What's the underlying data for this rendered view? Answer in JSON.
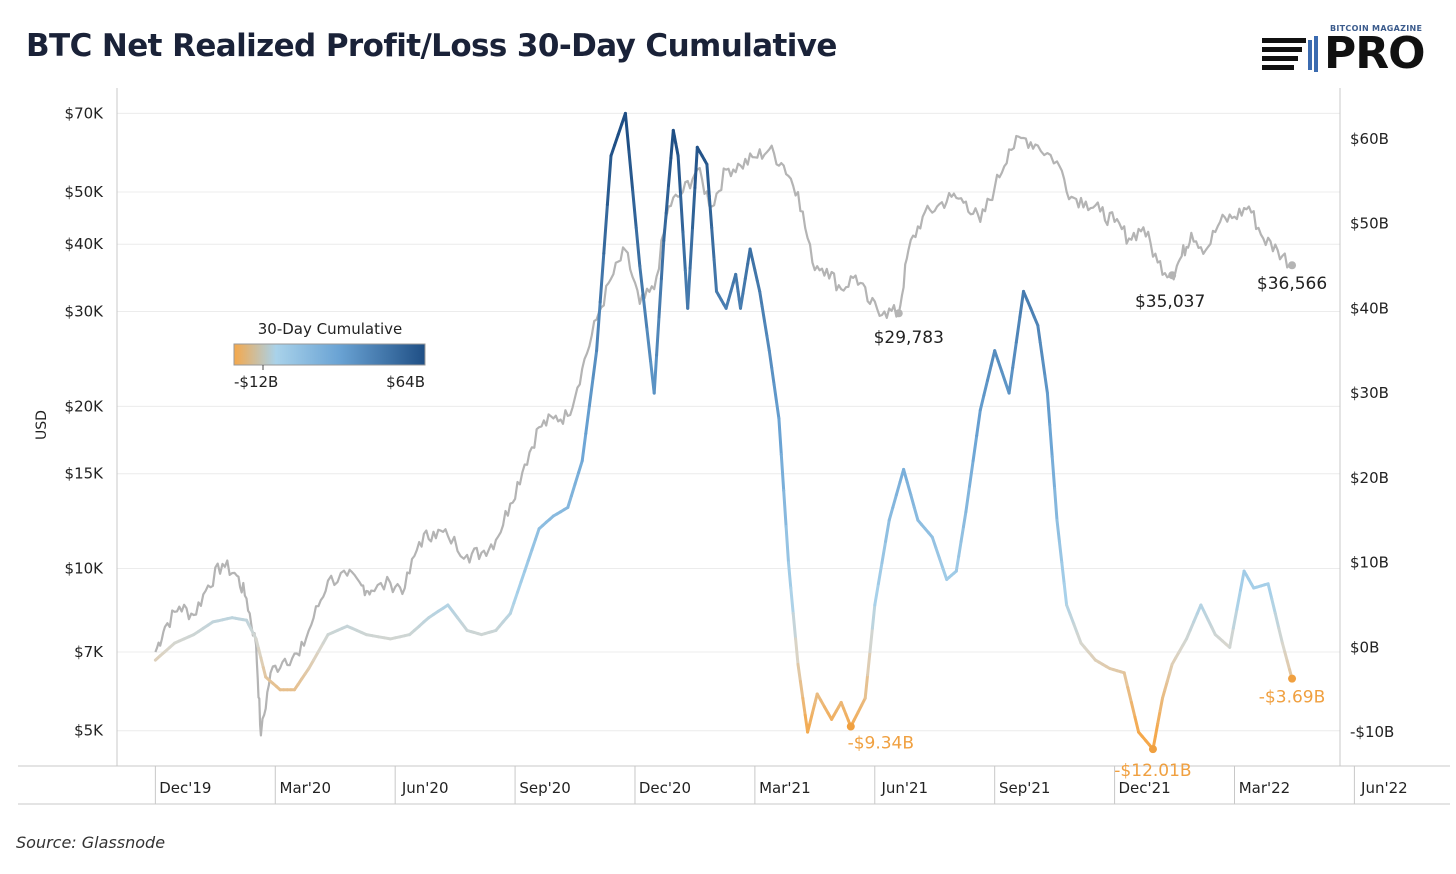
{
  "header": {
    "title": "BTC Net Realized Profit/Loss 30-Day Cumulative",
    "logo_top": "BITCOIN MAGAZINE",
    "logo_main": "PRO"
  },
  "source": "Source: Glassnode",
  "legend": {
    "title": "30-Day Cumulative",
    "min_label": "-$12B",
    "max_label": "$64B",
    "colors": [
      "#f5a84b",
      "#a9d2ea",
      "#6aa3d4",
      "#1f4f85"
    ]
  },
  "colors": {
    "price_line": "#b4b4b4",
    "grid": "#ececec",
    "axis": "#c8c8c8",
    "negative_label": "#f0a040",
    "neutral_color": "#d9d6cc"
  },
  "chart_data": {
    "type": "line",
    "x_tick_labels": [
      "Dec'19",
      "Mar'20",
      "Jun'20",
      "Sep'20",
      "Dec'20",
      "Mar'21",
      "Jun'21",
      "Sep'21",
      "Dec'21",
      "Mar'22",
      "Jun'22"
    ],
    "x_range": [
      2019.9,
      2022.45
    ],
    "left_axis": {
      "label": "USD",
      "scale": "log",
      "range": [
        4300,
        78000
      ],
      "ticks": [
        5000,
        7000,
        10000,
        15000,
        20000,
        30000,
        40000,
        50000,
        70000
      ],
      "tick_labels": [
        "$5K",
        "$7K",
        "$10K",
        "$15K",
        "$20K",
        "$30K",
        "$40K",
        "$50K",
        "$70K"
      ]
    },
    "right_axis": {
      "scale": "linear",
      "range": [
        -14,
        66
      ],
      "ticks": [
        -10,
        0,
        10,
        20,
        30,
        40,
        50,
        60
      ],
      "tick_labels": [
        "-$10B",
        "$0B",
        "$10B",
        "$20B",
        "$30B",
        "$40B",
        "$50B",
        "$60B"
      ]
    },
    "series": [
      {
        "axis": "left",
        "x": [
          2019.98,
          2020.0,
          2020.03,
          2020.06,
          2020.09,
          2020.12,
          2020.15,
          2020.17,
          2020.19,
          2020.2,
          2020.22,
          2020.25,
          2020.28,
          2020.31,
          2020.34,
          2020.38,
          2020.41,
          2020.43,
          2020.47,
          2020.5,
          2020.53,
          2020.56,
          2020.59,
          2020.63,
          2020.66,
          2020.69,
          2020.72,
          2020.75,
          2020.78,
          2020.81,
          2020.84,
          2020.87,
          2020.9,
          2020.93,
          2020.96,
          2020.99,
          2021.02,
          2021.05,
          2021.08,
          2021.11,
          2021.14,
          2021.17,
          2021.2,
          2021.23,
          2021.26,
          2021.29,
          2021.32,
          2021.35,
          2021.38,
          2021.41,
          2021.44,
          2021.47,
          2021.5,
          2021.53,
          2021.55,
          2021.58,
          2021.61,
          2021.64,
          2021.67,
          2021.7,
          2021.73,
          2021.76,
          2021.79,
          2021.82,
          2021.86,
          2021.89,
          2021.92,
          2021.95,
          2021.98,
          2022.01,
          2022.04,
          2022.07,
          2022.1,
          2022.12,
          2022.14,
          2022.17,
          2022.2,
          2022.23,
          2022.26,
          2022.29,
          2022.32,
          2022.35
        ],
        "y": [
          7000,
          7800,
          8500,
          8200,
          9300,
          10200,
          9700,
          8800,
          7200,
          4900,
          6400,
          6800,
          6900,
          8100,
          9500,
          9700,
          9300,
          9100,
          9400,
          9200,
          11200,
          11700,
          11500,
          10600,
          10700,
          11300,
          13200,
          15600,
          18300,
          19000,
          19200,
          23500,
          29000,
          34500,
          39000,
          31000,
          33000,
          47000,
          50000,
          55000,
          47000,
          55000,
          56000,
          58000,
          60000,
          56000,
          50000,
          37000,
          36000,
          33000,
          35000,
          31000,
          30000,
          29783,
          39000,
          45000,
          47000,
          49000,
          48000,
          44000,
          51000,
          60000,
          63000,
          61000,
          57000,
          49000,
          48000,
          46000,
          44000,
          41000,
          43000,
          37000,
          35037,
          38000,
          42000,
          39000,
          44000,
          45000,
          47000,
          41000,
          39000,
          36566
        ]
      },
      {
        "axis": "right",
        "x": [
          2019.98,
          2020.02,
          2020.06,
          2020.1,
          2020.14,
          2020.17,
          2020.19,
          2020.21,
          2020.24,
          2020.27,
          2020.3,
          2020.34,
          2020.38,
          2020.42,
          2020.47,
          2020.51,
          2020.55,
          2020.59,
          2020.63,
          2020.66,
          2020.69,
          2020.72,
          2020.75,
          2020.78,
          2020.81,
          2020.84,
          2020.87,
          2020.9,
          2020.93,
          2020.96,
          2020.99,
          2021.02,
          2021.04,
          2021.06,
          2021.07,
          2021.09,
          2021.11,
          2021.13,
          2021.15,
          2021.17,
          2021.19,
          2021.2,
          2021.22,
          2021.24,
          2021.26,
          2021.28,
          2021.3,
          2021.32,
          2021.34,
          2021.36,
          2021.39,
          2021.41,
          2021.43,
          2021.46,
          2021.48,
          2021.51,
          2021.54,
          2021.57,
          2021.6,
          2021.63,
          2021.65,
          2021.67,
          2021.7,
          2021.73,
          2021.76,
          2021.79,
          2021.82,
          2021.84,
          2021.86,
          2021.88,
          2021.91,
          2021.94,
          2021.97,
          2022.0,
          2022.03,
          2022.06,
          2022.08,
          2022.1,
          2022.13,
          2022.16,
          2022.19,
          2022.22,
          2022.25,
          2022.27,
          2022.3,
          2022.33,
          2022.35
        ],
        "y": [
          -1.5,
          0.5,
          1.5,
          3.0,
          3.5,
          3.2,
          1.0,
          -3.5,
          -5.0,
          -5.0,
          -2.5,
          1.5,
          2.5,
          1.5,
          1.0,
          1.5,
          3.5,
          5.0,
          2.0,
          1.5,
          2.0,
          4.0,
          9.0,
          14.0,
          15.5,
          16.5,
          22.0,
          35.0,
          58.0,
          63.0,
          45.0,
          30.0,
          48.0,
          61.0,
          58.0,
          40.0,
          59.0,
          57.0,
          42.0,
          40.0,
          44.0,
          40.0,
          47.0,
          42.0,
          35.0,
          27.0,
          10.0,
          -2.0,
          -10.0,
          -5.5,
          -8.5,
          -6.5,
          -9.34,
          -6.0,
          5.0,
          15.0,
          21.0,
          15.0,
          13.0,
          8.0,
          9.0,
          16.0,
          28.0,
          35.0,
          30.0,
          42.0,
          38.0,
          30.0,
          15.0,
          5.0,
          0.5,
          -1.5,
          -2.5,
          -3.0,
          -10.0,
          -12.01,
          -6.0,
          -2.0,
          1.0,
          5.0,
          1.5,
          0.0,
          9.0,
          7.0,
          7.5,
          0.5,
          -3.69
        ]
      }
    ],
    "annotations": [
      {
        "text": "$29,783"
      },
      {
        "text": "$35,037"
      },
      {
        "text": "$36,566"
      },
      {
        "text": "-$9.34B"
      },
      {
        "text": "-$12.01B"
      },
      {
        "text": "-$3.69B"
      }
    ],
    "grid": true
  }
}
